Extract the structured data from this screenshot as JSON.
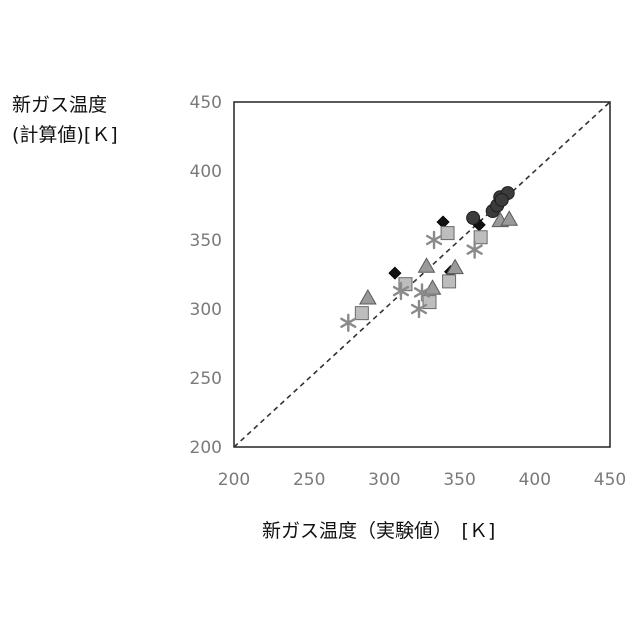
{
  "chart_data": {
    "type": "scatter",
    "title": "",
    "ylabel_line1": "新ガス温度",
    "ylabel_line2": "(計算値)[Ｋ]",
    "xlabel": "新ガス温度（実験値）　[Ｋ]",
    "xlim": [
      200,
      450
    ],
    "ylim": [
      200,
      450
    ],
    "xticks": [
      "200",
      "250",
      "300",
      "350",
      "400",
      "450"
    ],
    "yticks": [
      "200",
      "250",
      "300",
      "350",
      "400",
      "450"
    ],
    "grid": false,
    "reference_line": "y = x (dashed)",
    "series": [
      {
        "marker": "diamond",
        "color": "#111111",
        "points": [
          [
            307,
            326
          ],
          [
            339,
            363
          ],
          [
            344,
            327
          ],
          [
            363,
            361
          ]
        ]
      },
      {
        "marker": "circle",
        "color": "#3c3c3c",
        "points": [
          [
            359,
            366
          ],
          [
            372,
            371
          ],
          [
            375,
            375
          ],
          [
            377,
            381
          ],
          [
            382,
            384
          ],
          [
            378,
            379
          ]
        ]
      },
      {
        "marker": "triangle",
        "color": "#9a9a9a",
        "points": [
          [
            289,
            308
          ],
          [
            328,
            331
          ],
          [
            332,
            315
          ],
          [
            347,
            330
          ],
          [
            377,
            364
          ],
          [
            383,
            365
          ]
        ]
      },
      {
        "marker": "square",
        "color": "#bdbdbd",
        "points": [
          [
            285,
            297
          ],
          [
            314,
            318
          ],
          [
            330,
            305
          ],
          [
            343,
            320
          ],
          [
            342,
            355
          ],
          [
            364,
            352
          ]
        ]
      },
      {
        "marker": "asterisk",
        "color": "#8a8a8a",
        "points": [
          [
            276,
            290
          ],
          [
            311,
            313
          ],
          [
            323,
            300
          ],
          [
            333,
            350
          ],
          [
            360,
            343
          ],
          [
            325,
            312
          ]
        ]
      }
    ]
  }
}
